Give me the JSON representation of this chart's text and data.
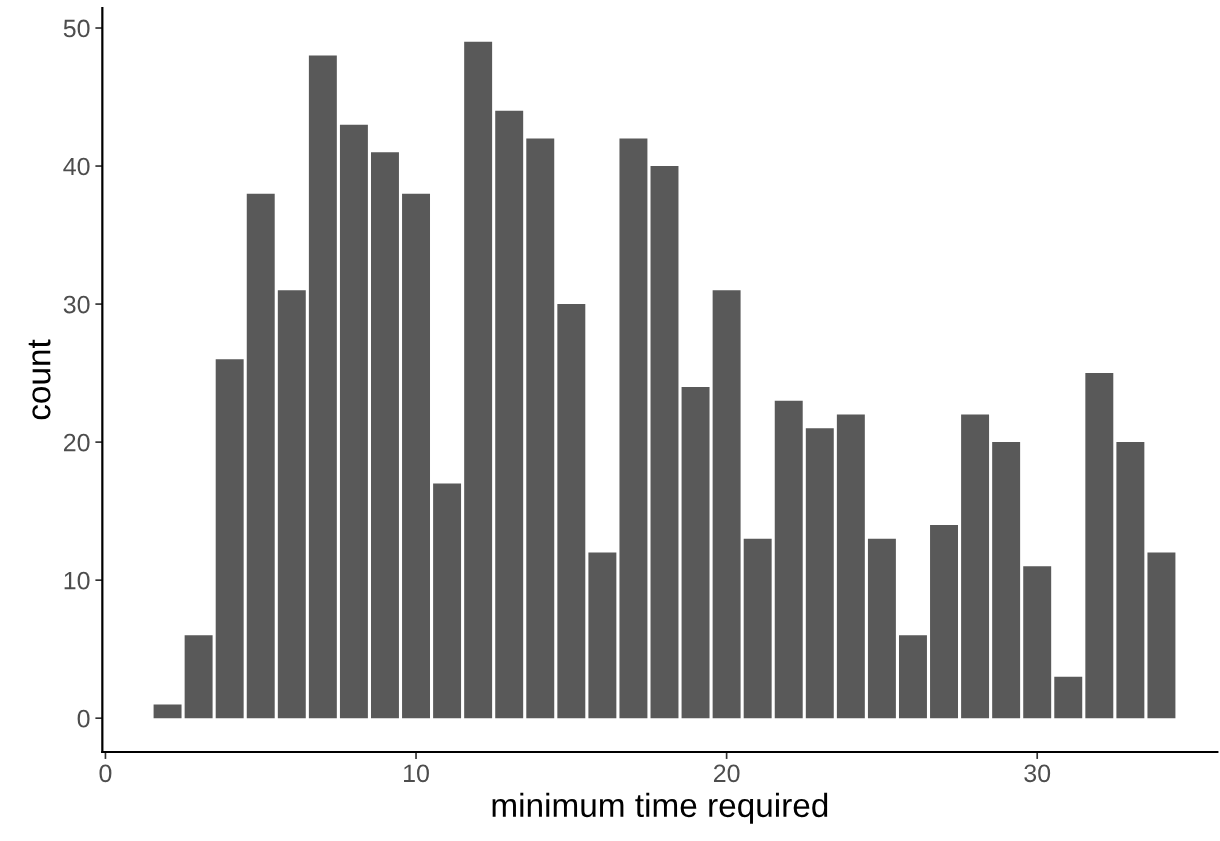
{
  "chart_data": {
    "type": "bar",
    "xlabel": "minimum time required",
    "ylabel": "count",
    "x": [
      2,
      3,
      4,
      5,
      6,
      7,
      8,
      9,
      10,
      11,
      12,
      13,
      14,
      15,
      16,
      17,
      18,
      19,
      20,
      21,
      22,
      23,
      24,
      25,
      26,
      27,
      28,
      29,
      30,
      31,
      32,
      33,
      34
    ],
    "values": [
      1,
      6,
      26,
      38,
      31,
      48,
      43,
      41,
      38,
      17,
      49,
      44,
      42,
      30,
      12,
      42,
      40,
      24,
      31,
      13,
      23,
      21,
      22,
      13,
      6,
      14,
      22,
      20,
      11,
      3,
      25,
      20,
      12
    ],
    "color": "#595959",
    "xlim": [
      -0.1,
      35.8
    ],
    "xticks": [
      0,
      10,
      20,
      30
    ],
    "ylim": [
      -2.45,
      51.45
    ],
    "yticks": [
      0,
      10,
      20,
      30,
      40,
      50
    ],
    "grid": false,
    "legend": false
  }
}
